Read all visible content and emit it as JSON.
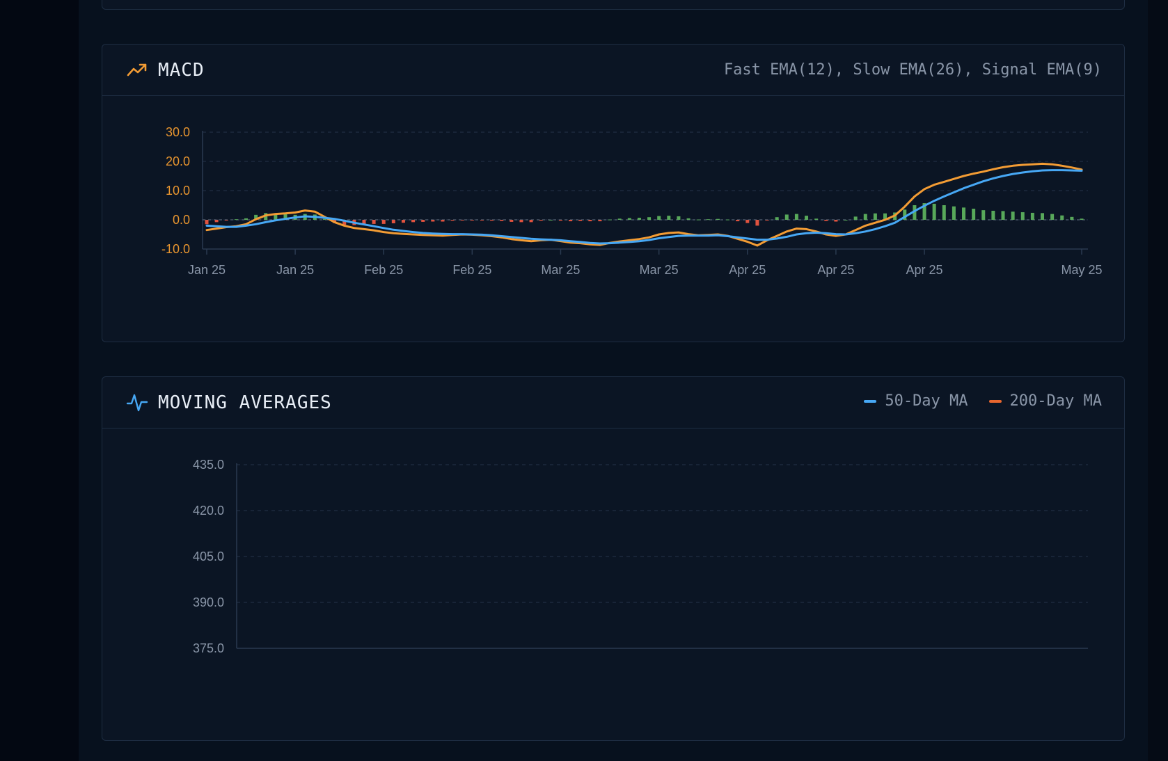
{
  "colors": {
    "macd_line": "#f39c34",
    "signal_line": "#47a8f5",
    "hist_positive": "#58a85a",
    "hist_negative": "#e0533f",
    "ma50": "#47a8f5",
    "ma200": "#e8662e",
    "axis_text_macd": "#e8952f",
    "axis_text": "#8a96a8"
  },
  "macd_panel": {
    "title": "MACD",
    "icon": "trending-up-icon",
    "subtitle": "Fast EMA(12), Slow EMA(26), Signal EMA(9)"
  },
  "ma_panel": {
    "title": "MOVING AVERAGES",
    "icon": "activity-pulse-icon",
    "legend": [
      {
        "label": "50-Day MA",
        "color": "#47a8f5"
      },
      {
        "label": "200-Day MA",
        "color": "#e8662e"
      }
    ]
  },
  "chart_data": [
    {
      "type": "line",
      "title": "MACD",
      "subtitle": "Fast EMA(12), Slow EMA(26), Signal EMA(9)",
      "x_tick_labels": [
        "Jan 25",
        "Jan 25",
        "Feb 25",
        "Feb 25",
        "Mar 25",
        "Mar 25",
        "Apr 25",
        "Apr 25",
        "Apr 25",
        "May 25"
      ],
      "x_tick_positions": [
        0,
        9,
        18,
        27,
        36,
        46,
        55,
        64,
        73,
        89
      ],
      "x_count": 90,
      "y_ticks": [
        30.0,
        20.0,
        10.0,
        0.0,
        -10.0
      ],
      "ylim": [
        -10,
        30
      ],
      "grid": true,
      "series": [
        {
          "role": "macd",
          "values": [
            -3.5,
            -3.0,
            -2.5,
            -2.2,
            -1.5,
            0.2,
            1.5,
            2.0,
            2.2,
            2.5,
            3.2,
            2.8,
            1.0,
            -0.8,
            -2.0,
            -2.8,
            -3.2,
            -3.6,
            -4.2,
            -4.6,
            -4.8,
            -5.0,
            -5.2,
            -5.3,
            -5.4,
            -5.2,
            -5.0,
            -5.1,
            -5.3,
            -5.6,
            -6.0,
            -6.6,
            -7.0,
            -7.3,
            -7.0,
            -6.8,
            -7.3,
            -7.8,
            -8.0,
            -8.4,
            -8.6,
            -7.9,
            -7.4,
            -7.0,
            -6.6,
            -6.0,
            -5.0,
            -4.5,
            -4.3,
            -4.9,
            -5.3,
            -5.2,
            -5.0,
            -5.5,
            -6.5,
            -7.5,
            -8.8,
            -7.0,
            -5.5,
            -4.0,
            -3.0,
            -3.2,
            -4.0,
            -5.0,
            -5.5,
            -5.0,
            -3.5,
            -2.0,
            -1.0,
            0.0,
            1.5,
            4.5,
            8.0,
            10.5,
            12.0,
            13.0,
            14.0,
            15.0,
            15.8,
            16.5,
            17.3,
            18.0,
            18.5,
            18.8,
            19.0,
            19.2,
            19.0,
            18.5,
            17.9,
            17.2
          ],
          "signal": [
            -2.0,
            -2.2,
            -2.4,
            -2.4,
            -2.0,
            -1.5,
            -0.8,
            -0.2,
            0.3,
            0.8,
            1.2,
            1.0,
            0.7,
            0.3,
            -0.3,
            -1.0,
            -1.6,
            -2.2,
            -2.8,
            -3.4,
            -3.8,
            -4.2,
            -4.5,
            -4.7,
            -4.8,
            -4.9,
            -4.9,
            -5.0,
            -5.1,
            -5.3,
            -5.6,
            -5.9,
            -6.2,
            -6.5,
            -6.7,
            -6.8,
            -7.0,
            -7.3,
            -7.6,
            -7.9,
            -8.1,
            -8.0,
            -7.8,
            -7.6,
            -7.3,
            -6.9,
            -6.3,
            -5.9,
            -5.5,
            -5.4,
            -5.4,
            -5.4,
            -5.3,
            -5.6,
            -6.0,
            -6.4,
            -6.8,
            -6.8,
            -6.4,
            -5.8,
            -5.0,
            -4.6,
            -4.4,
            -4.6,
            -4.9,
            -5.0,
            -4.6,
            -4.0,
            -3.2,
            -2.2,
            -1.0,
            1.0,
            3.0,
            4.8,
            6.5,
            8.0,
            9.4,
            10.8,
            12.0,
            13.2,
            14.2,
            15.0,
            15.7,
            16.2,
            16.6,
            16.9,
            17.0,
            17.0,
            16.9,
            16.8
          ]
        }
      ],
      "histogram": [
        -1.5,
        -0.8,
        -0.1,
        0.2,
        0.5,
        1.7,
        2.3,
        2.2,
        1.9,
        1.7,
        2.0,
        1.8,
        0.3,
        -1.1,
        -1.7,
        -1.8,
        -1.6,
        -1.4,
        -1.4,
        -1.2,
        -1.0,
        -0.8,
        -0.7,
        -0.6,
        -0.6,
        -0.3,
        -0.1,
        -0.1,
        -0.2,
        -0.3,
        -0.4,
        -0.7,
        -0.8,
        -0.8,
        -0.3,
        0.0,
        -0.3,
        -0.5,
        -0.4,
        -0.5,
        -0.5,
        0.1,
        0.4,
        0.6,
        0.7,
        0.9,
        1.3,
        1.4,
        1.2,
        0.5,
        0.1,
        0.2,
        0.3,
        0.1,
        -0.5,
        -1.1,
        -2.0,
        -0.2,
        0.9,
        1.8,
        2.0,
        1.4,
        0.4,
        -0.4,
        -0.6,
        0.0,
        1.1,
        2.0,
        2.2,
        2.2,
        2.5,
        3.5,
        5.0,
        5.7,
        5.5,
        5.0,
        4.6,
        4.2,
        3.8,
        3.3,
        3.1,
        3.0,
        2.8,
        2.6,
        2.4,
        2.3,
        2.0,
        1.5,
        1.0,
        0.4
      ]
    },
    {
      "type": "line",
      "title": "MOVING AVERAGES",
      "legend": [
        "50-Day MA",
        "200-Day MA"
      ],
      "legend_position": "top-right",
      "y_ticks": [
        435.0,
        420.0,
        405.0,
        390.0,
        375.0
      ],
      "ylim": [
        375,
        435
      ],
      "grid": true,
      "series": [
        {
          "name": "50-Day MA",
          "values": []
        },
        {
          "name": "200-Day MA",
          "values": []
        }
      ]
    }
  ]
}
